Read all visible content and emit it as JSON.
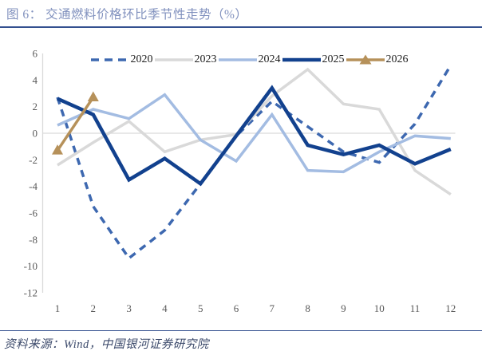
{
  "title": {
    "text": "图 6： 交通燃料价格环比季节性走势（%）"
  },
  "footer": {
    "source": "资料来源：Wind，中国银河证券研究院"
  },
  "colors": {
    "title": "#8191BE",
    "rule": "#33508F",
    "footer_text": "#3C4A6B",
    "axis_line": "#D9D9D9",
    "zero_gridline": "#D9D9D9",
    "tick_label": "#595959"
  },
  "chart_data": {
    "type": "line",
    "title": "图 6：交通燃料价格环比季节性走势（%）",
    "xlabel": "",
    "ylabel": "",
    "x": [
      1,
      2,
      3,
      4,
      5,
      6,
      7,
      8,
      9,
      10,
      11,
      12
    ],
    "ylim": [
      -12,
      6
    ],
    "ytick_step": 2,
    "grid": "zero-line-only",
    "legend_position": "top",
    "series": [
      {
        "name": "2020",
        "color": "#3D68B0",
        "width": 3.5,
        "dash": "9 7",
        "marker": "none",
        "values": [
          2.7,
          -5.5,
          -9.4,
          -7.3,
          -3.8,
          -0.2,
          2.4,
          0.5,
          -1.4,
          -2.2,
          0.7,
          5.1
        ]
      },
      {
        "name": "2023",
        "color": "#D9D9D9",
        "width": 3.5,
        "dash": "",
        "marker": "none",
        "values": [
          -2.4,
          -0.7,
          0.9,
          -1.4,
          -0.5,
          -0.1,
          2.8,
          4.8,
          2.2,
          1.8,
          -2.8,
          -4.6
        ]
      },
      {
        "name": "2024",
        "color": "#A3BCE2",
        "width": 3.5,
        "dash": "",
        "marker": "none",
        "values": [
          0.6,
          1.8,
          1.1,
          2.9,
          -0.5,
          -2.1,
          1.4,
          -2.8,
          -2.9,
          -1.4,
          -0.2,
          -0.4
        ]
      },
      {
        "name": "2025",
        "color": "#12418E",
        "width": 4.5,
        "dash": "",
        "marker": "none",
        "values": [
          2.6,
          1.4,
          -3.5,
          -1.9,
          -3.8,
          -0.2,
          3.4,
          -0.9,
          -1.6,
          -0.9,
          -2.3,
          -1.2
        ]
      },
      {
        "name": "2026",
        "color": "#B6915A",
        "width": 3.5,
        "dash": "",
        "marker": "triangle",
        "values": [
          -1.3,
          2.7,
          null,
          null,
          null,
          null,
          null,
          null,
          null,
          null,
          null,
          null
        ]
      }
    ]
  }
}
